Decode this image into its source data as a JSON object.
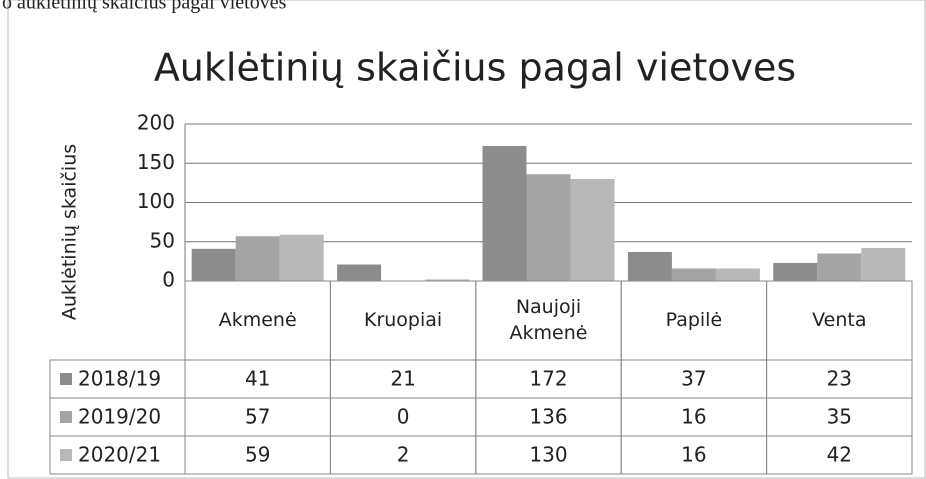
{
  "caption": "o auklėtinių skaičius pagal vietoves",
  "chart_data": {
    "type": "bar",
    "title": "Auklėtinių skaičius pagal vietoves",
    "y_label": "Auklėtinių skaičius",
    "categories": [
      "Akmenė",
      "Kruopiai",
      "Naujoji Akmenė",
      "Papilė",
      "Venta"
    ],
    "series": [
      {
        "name": "2018/19",
        "color": "#8c8c8c",
        "values": [
          41,
          21,
          172,
          37,
          23
        ]
      },
      {
        "name": "2019/20",
        "color": "#a4a4a4",
        "values": [
          57,
          0,
          136,
          16,
          35
        ]
      },
      {
        "name": "2020/21",
        "color": "#b8b8b8",
        "values": [
          59,
          2,
          130,
          16,
          42
        ]
      }
    ],
    "ylim": [
      0,
      200
    ],
    "yticks": [
      0,
      50,
      100,
      150,
      200
    ],
    "grid": true,
    "data_table": true
  }
}
